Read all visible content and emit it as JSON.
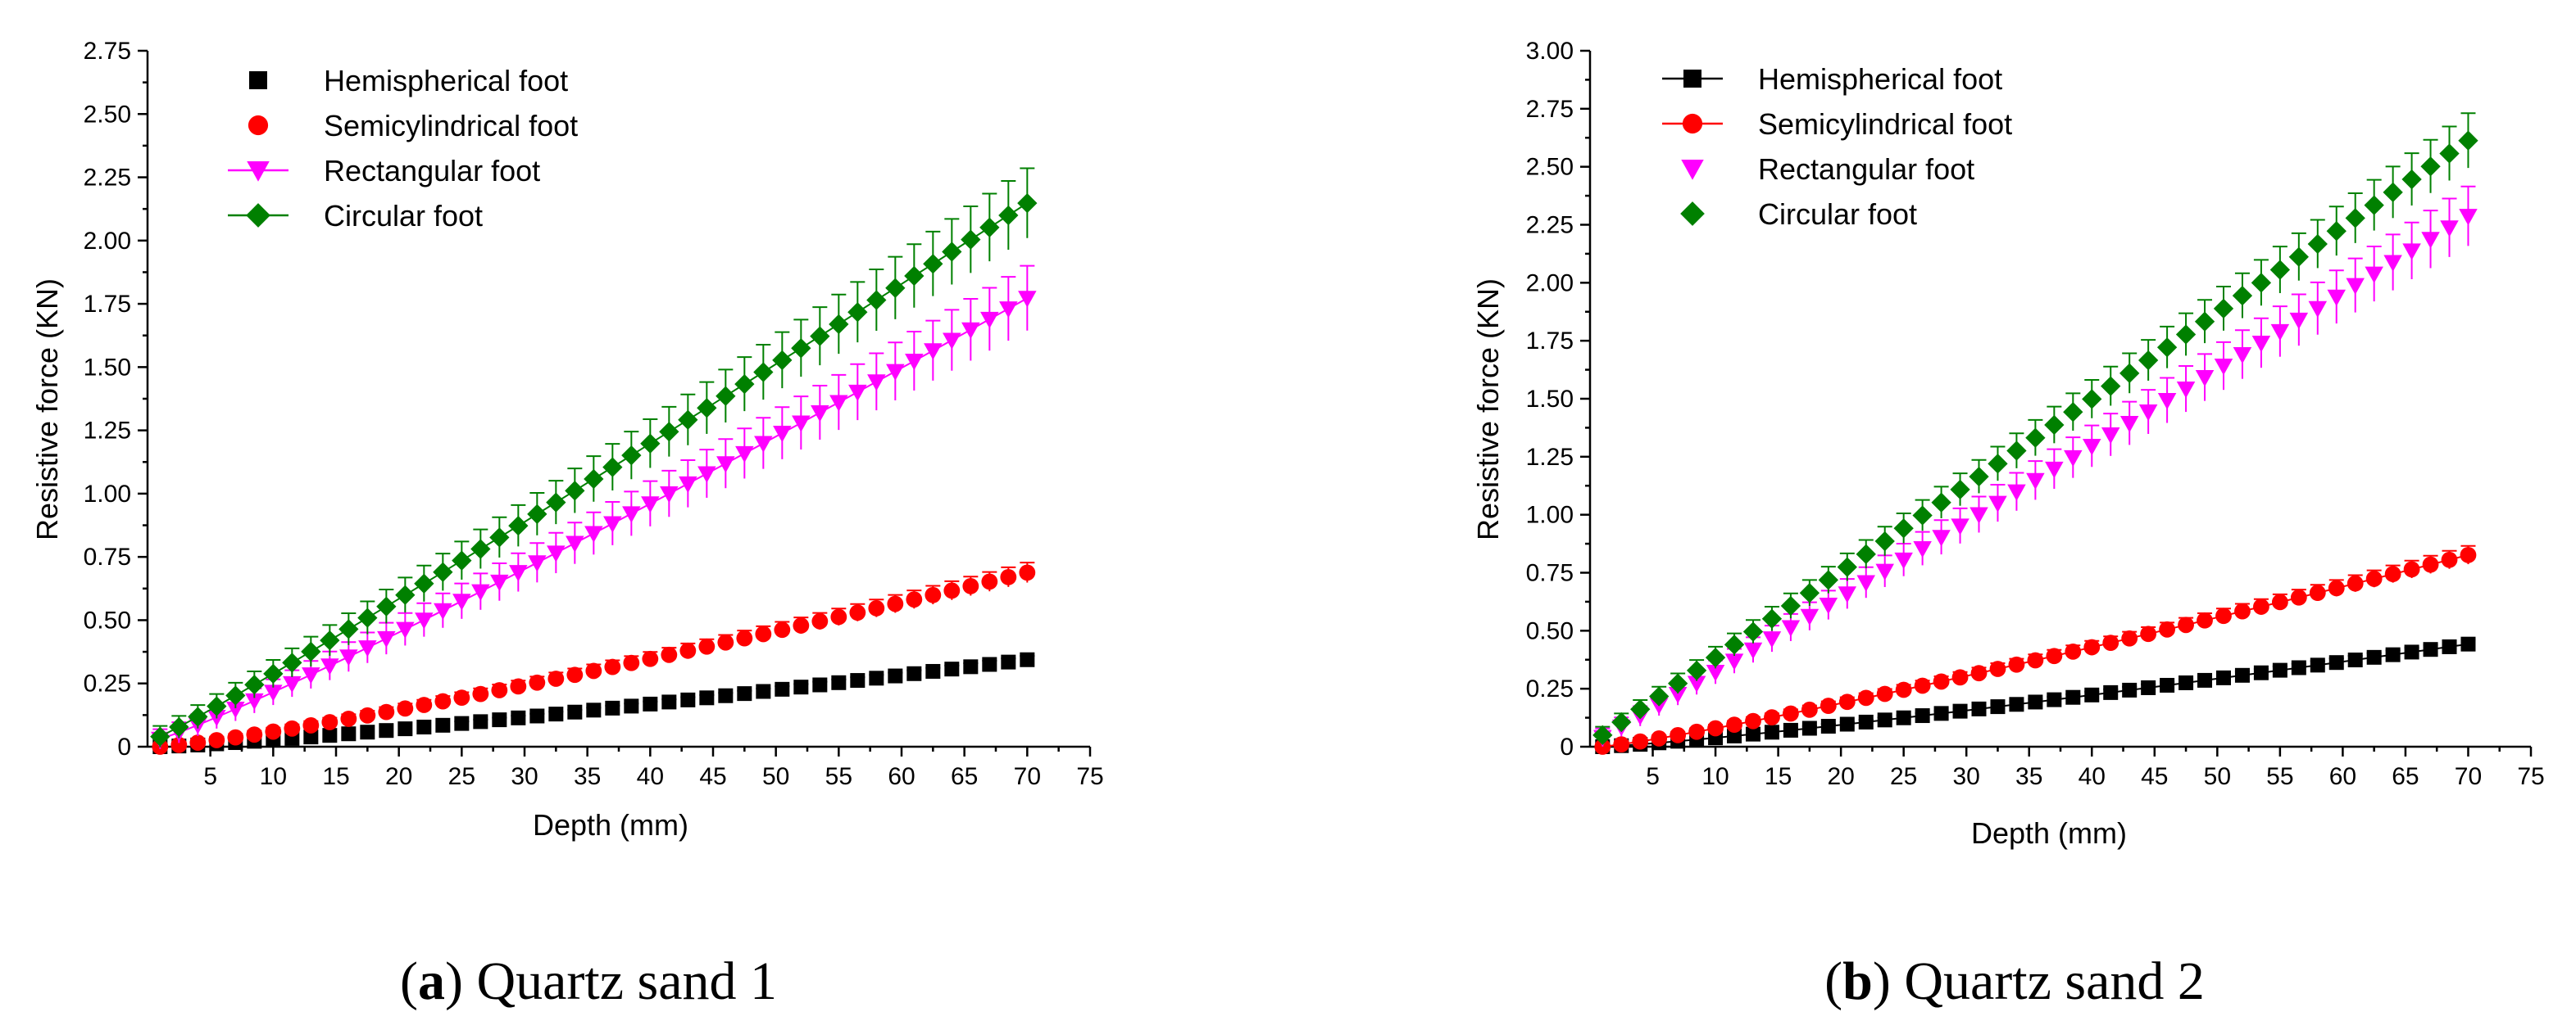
{
  "chart_data": [
    {
      "type": "scatter",
      "panel_letter": "a",
      "caption": "Quartz sand 1",
      "xlabel": "Depth (mm)",
      "ylabel": "Resistive force (KN)",
      "xlim": [
        0,
        75
      ],
      "ylim": [
        0,
        2.75
      ],
      "xticks": [
        "5",
        "10",
        "15",
        "20",
        "25",
        "30",
        "35",
        "40",
        "45",
        "50",
        "55",
        "60",
        "65",
        "70",
        "75"
      ],
      "yticks": [
        "0",
        "0.25",
        "0.50",
        "0.75",
        "1.00",
        "1.25",
        "1.50",
        "1.75",
        "2.00",
        "2.25",
        "2.50",
        "2.75"
      ],
      "legend_position": "top-left",
      "series": [
        {
          "name": "Hemispherical foot",
          "marker": "square",
          "color": "#000000",
          "end_value": 0.35,
          "start_value": 0.0,
          "curve": 1.25,
          "error": 0.015,
          "line": false
        },
        {
          "name": "Semicylindrical foot",
          "marker": "circle",
          "color": "#ff0000",
          "end_value": 0.7,
          "start_value": 0.0,
          "curve": 1.2,
          "error": 0.04,
          "line": false
        },
        {
          "name": "Rectangular foot",
          "marker": "triangle-down",
          "color": "#ff00ff",
          "end_value": 1.8,
          "start_value": 0.03,
          "curve": 1.1,
          "error": 0.13,
          "line": true
        },
        {
          "name": "Circular foot",
          "marker": "diamond",
          "color": "#008000",
          "end_value": 2.18,
          "start_value": 0.04,
          "curve": 1.05,
          "error": 0.14,
          "line": true
        }
      ]
    },
    {
      "type": "scatter",
      "panel_letter": "b",
      "caption": "Quartz sand 2",
      "xlabel": "Depth (mm)",
      "ylabel": "Resistive force (KN)",
      "xlim": [
        0,
        75
      ],
      "ylim": [
        0,
        3.0
      ],
      "xticks": [
        "5",
        "10",
        "15",
        "20",
        "25",
        "30",
        "35",
        "40",
        "45",
        "50",
        "55",
        "60",
        "65",
        "70",
        "75"
      ],
      "yticks": [
        "0",
        "0.25",
        "0.50",
        "0.75",
        "1.00",
        "1.25",
        "1.50",
        "1.75",
        "2.00",
        "2.25",
        "2.50",
        "2.75",
        "3.00"
      ],
      "legend_position": "top-left",
      "series": [
        {
          "name": "Hemispherical foot",
          "marker": "square",
          "color": "#000000",
          "end_value": 0.45,
          "start_value": 0.0,
          "curve": 1.2,
          "error": 0.02,
          "line": true
        },
        {
          "name": "Semicylindrical foot",
          "marker": "circle",
          "color": "#ff0000",
          "end_value": 0.84,
          "start_value": 0.0,
          "curve": 1.15,
          "error": 0.04,
          "line": true
        },
        {
          "name": "Rectangular foot",
          "marker": "triangle-down",
          "color": "#ff00ff",
          "end_value": 2.32,
          "start_value": 0.04,
          "curve": 1.02,
          "error": 0.13,
          "line": false
        },
        {
          "name": "Circular foot",
          "marker": "diamond",
          "color": "#008000",
          "end_value": 2.65,
          "start_value": 0.05,
          "curve": 1.0,
          "error": 0.12,
          "line": false
        }
      ]
    }
  ]
}
